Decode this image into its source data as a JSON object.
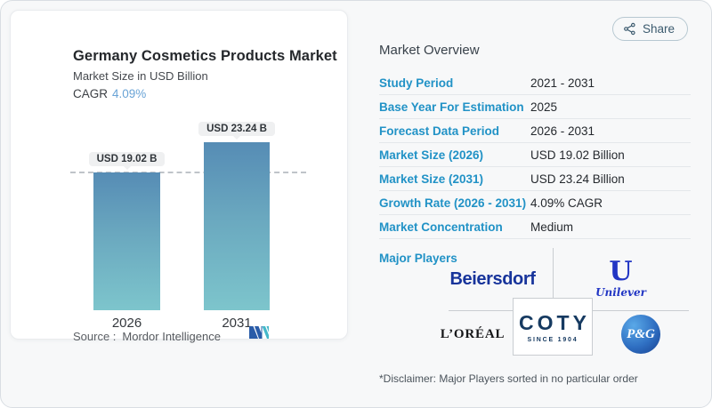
{
  "share": {
    "label": "Share"
  },
  "chart_card": {
    "title": "Germany Cosmetics Products Market",
    "subtitle": "Market Size in USD Billion",
    "cagr_label": "CAGR",
    "cagr_value": "4.09%",
    "source_label": "Source :",
    "source_value": "Mordor Intelligence"
  },
  "chart_data": {
    "type": "bar",
    "title": "Germany Cosmetics Products Market",
    "ylabel": "Market Size in USD Billion",
    "categories": [
      "2026",
      "2031"
    ],
    "values": [
      19.02,
      23.24
    ],
    "value_labels": [
      "USD 19.02 B",
      "USD 23.24 B"
    ],
    "cagr": "4.09%",
    "ylim": [
      0,
      23.24
    ],
    "grid": false,
    "dashed_reference_value": 19.02,
    "bar_gradient_top": "#568cb5",
    "bar_gradient_bottom": "#7dc5cc"
  },
  "overview": {
    "heading": "Market Overview",
    "rows": [
      {
        "label": "Study Period",
        "value": "2021 - 2031"
      },
      {
        "label": "Base Year For Estimation",
        "value": "2025"
      },
      {
        "label": "Forecast Data Period",
        "value": "2026 - 2031"
      },
      {
        "label": "Market Size (2026)",
        "value": "USD 19.02 Billion"
      },
      {
        "label": "Market Size (2031)",
        "value": "USD 23.24 Billion"
      },
      {
        "label": "Growth Rate (2026 - 2031)",
        "value": "4.09% CAGR"
      },
      {
        "label": "Market Concentration",
        "value": "Medium"
      }
    ],
    "major_players_label": "Major Players",
    "major_players": [
      "Beiersdorf",
      "U",
      "Unilever",
      "L’ORÉAL",
      "COTY",
      "SINCE 1904",
      "P&G"
    ],
    "disclaimer": "*Disclaimer: Major Players sorted in no particular order"
  },
  "colors": {
    "label_blue": "#2192c6",
    "cagr_blue": "#6aa4d6",
    "share_slate": "#3b5a6e",
    "mordor_navy": "#2a5ca8",
    "mordor_teal": "#45b8c9"
  }
}
